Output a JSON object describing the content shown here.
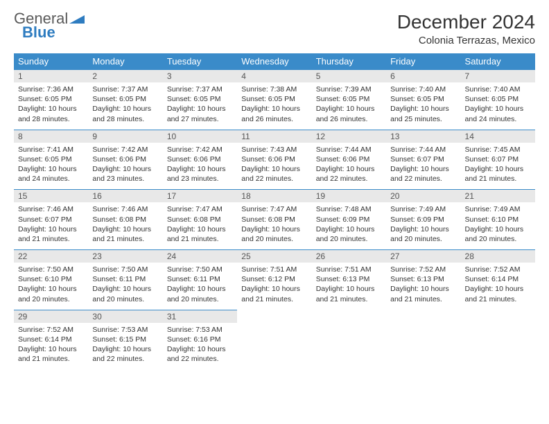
{
  "logo": {
    "word1": "General",
    "word2": "Blue"
  },
  "title": "December 2024",
  "location": "Colonia Terrazas, Mexico",
  "weekdays": [
    "Sunday",
    "Monday",
    "Tuesday",
    "Wednesday",
    "Thursday",
    "Friday",
    "Saturday"
  ],
  "colors": {
    "header_bg": "#3a8bc9",
    "header_fg": "#ffffff",
    "daynum_bg": "#e8e8e8",
    "cell_border": "#3a8bc9",
    "logo_blue": "#2e7cc0"
  },
  "days": [
    {
      "n": 1,
      "sunrise": "7:36 AM",
      "sunset": "6:05 PM",
      "daylight": "10 hours and 28 minutes."
    },
    {
      "n": 2,
      "sunrise": "7:37 AM",
      "sunset": "6:05 PM",
      "daylight": "10 hours and 28 minutes."
    },
    {
      "n": 3,
      "sunrise": "7:37 AM",
      "sunset": "6:05 PM",
      "daylight": "10 hours and 27 minutes."
    },
    {
      "n": 4,
      "sunrise": "7:38 AM",
      "sunset": "6:05 PM",
      "daylight": "10 hours and 26 minutes."
    },
    {
      "n": 5,
      "sunrise": "7:39 AM",
      "sunset": "6:05 PM",
      "daylight": "10 hours and 26 minutes."
    },
    {
      "n": 6,
      "sunrise": "7:40 AM",
      "sunset": "6:05 PM",
      "daylight": "10 hours and 25 minutes."
    },
    {
      "n": 7,
      "sunrise": "7:40 AM",
      "sunset": "6:05 PM",
      "daylight": "10 hours and 24 minutes."
    },
    {
      "n": 8,
      "sunrise": "7:41 AM",
      "sunset": "6:05 PM",
      "daylight": "10 hours and 24 minutes."
    },
    {
      "n": 9,
      "sunrise": "7:42 AM",
      "sunset": "6:06 PM",
      "daylight": "10 hours and 23 minutes."
    },
    {
      "n": 10,
      "sunrise": "7:42 AM",
      "sunset": "6:06 PM",
      "daylight": "10 hours and 23 minutes."
    },
    {
      "n": 11,
      "sunrise": "7:43 AM",
      "sunset": "6:06 PM",
      "daylight": "10 hours and 22 minutes."
    },
    {
      "n": 12,
      "sunrise": "7:44 AM",
      "sunset": "6:06 PM",
      "daylight": "10 hours and 22 minutes."
    },
    {
      "n": 13,
      "sunrise": "7:44 AM",
      "sunset": "6:07 PM",
      "daylight": "10 hours and 22 minutes."
    },
    {
      "n": 14,
      "sunrise": "7:45 AM",
      "sunset": "6:07 PM",
      "daylight": "10 hours and 21 minutes."
    },
    {
      "n": 15,
      "sunrise": "7:46 AM",
      "sunset": "6:07 PM",
      "daylight": "10 hours and 21 minutes."
    },
    {
      "n": 16,
      "sunrise": "7:46 AM",
      "sunset": "6:08 PM",
      "daylight": "10 hours and 21 minutes."
    },
    {
      "n": 17,
      "sunrise": "7:47 AM",
      "sunset": "6:08 PM",
      "daylight": "10 hours and 21 minutes."
    },
    {
      "n": 18,
      "sunrise": "7:47 AM",
      "sunset": "6:08 PM",
      "daylight": "10 hours and 20 minutes."
    },
    {
      "n": 19,
      "sunrise": "7:48 AM",
      "sunset": "6:09 PM",
      "daylight": "10 hours and 20 minutes."
    },
    {
      "n": 20,
      "sunrise": "7:49 AM",
      "sunset": "6:09 PM",
      "daylight": "10 hours and 20 minutes."
    },
    {
      "n": 21,
      "sunrise": "7:49 AM",
      "sunset": "6:10 PM",
      "daylight": "10 hours and 20 minutes."
    },
    {
      "n": 22,
      "sunrise": "7:50 AM",
      "sunset": "6:10 PM",
      "daylight": "10 hours and 20 minutes."
    },
    {
      "n": 23,
      "sunrise": "7:50 AM",
      "sunset": "6:11 PM",
      "daylight": "10 hours and 20 minutes."
    },
    {
      "n": 24,
      "sunrise": "7:50 AM",
      "sunset": "6:11 PM",
      "daylight": "10 hours and 20 minutes."
    },
    {
      "n": 25,
      "sunrise": "7:51 AM",
      "sunset": "6:12 PM",
      "daylight": "10 hours and 21 minutes."
    },
    {
      "n": 26,
      "sunrise": "7:51 AM",
      "sunset": "6:13 PM",
      "daylight": "10 hours and 21 minutes."
    },
    {
      "n": 27,
      "sunrise": "7:52 AM",
      "sunset": "6:13 PM",
      "daylight": "10 hours and 21 minutes."
    },
    {
      "n": 28,
      "sunrise": "7:52 AM",
      "sunset": "6:14 PM",
      "daylight": "10 hours and 21 minutes."
    },
    {
      "n": 29,
      "sunrise": "7:52 AM",
      "sunset": "6:14 PM",
      "daylight": "10 hours and 21 minutes."
    },
    {
      "n": 30,
      "sunrise": "7:53 AM",
      "sunset": "6:15 PM",
      "daylight": "10 hours and 22 minutes."
    },
    {
      "n": 31,
      "sunrise": "7:53 AM",
      "sunset": "6:16 PM",
      "daylight": "10 hours and 22 minutes."
    }
  ],
  "labels": {
    "sunrise": "Sunrise:",
    "sunset": "Sunset:",
    "daylight": "Daylight:"
  }
}
